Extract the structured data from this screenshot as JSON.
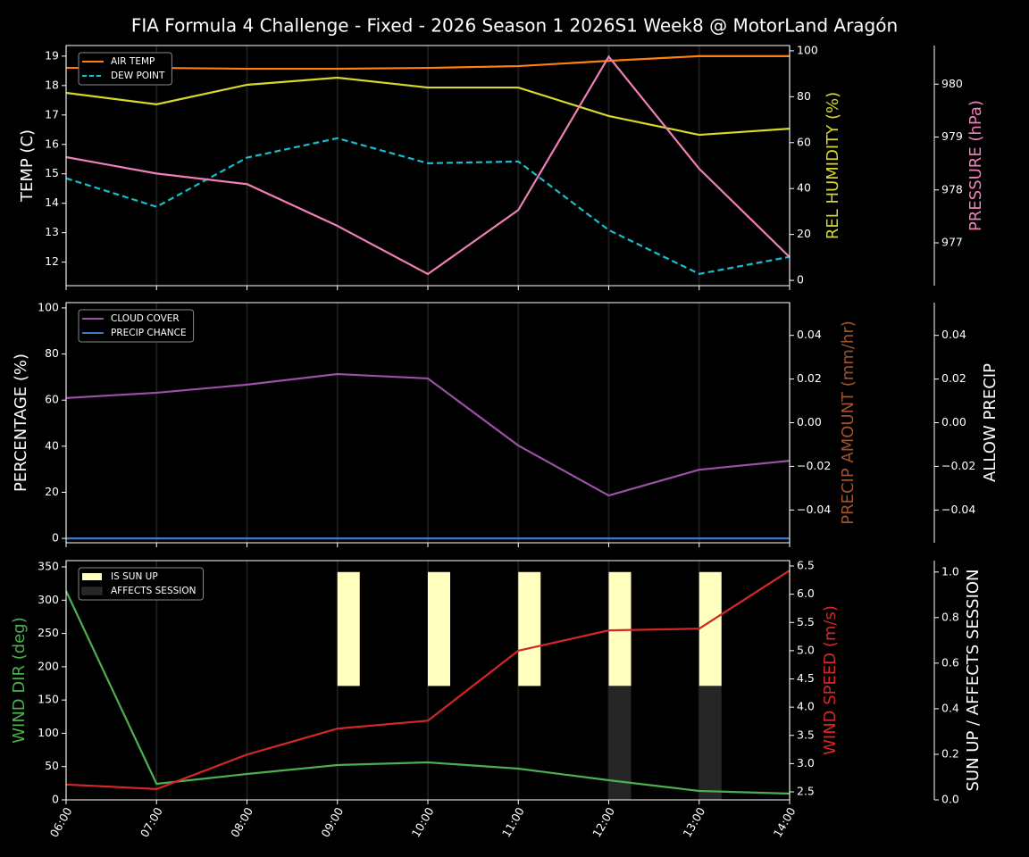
{
  "title": "FIA Formula 4 Challenge - Fixed - 2026 Season 1 2026S1 Week8 @ MotorLand Aragón",
  "categories": [
    "06:00",
    "07:00",
    "08:00",
    "09:00",
    "10:00",
    "11:00",
    "12:00",
    "13:00",
    "14:00"
  ],
  "chart_data": [
    {
      "type": "line",
      "grid": "x",
      "legend": "upper left",
      "axes": [
        {
          "label": "TEMP (C)",
          "color": "#ffffff",
          "ylim": [
            11.2,
            19.36
          ],
          "yticks": [
            12,
            13,
            14,
            15,
            16,
            17,
            18,
            19
          ]
        },
        {
          "label": "REL HUMIDITY (%)",
          "color": "#d8d82a",
          "ylim": [
            -2.3,
            102.3
          ],
          "yticks": [
            0,
            20,
            40,
            60,
            80,
            100
          ]
        },
        {
          "label": "PRESSURE (hPa)",
          "color": "#f07fb8",
          "ylim": [
            976.19,
            980.73
          ],
          "yticks": [
            977,
            978,
            979,
            980
          ]
        }
      ],
      "series": [
        {
          "name": "AIR TEMP",
          "color": "#ff7f0e",
          "style": "solid",
          "axis": 0,
          "legend": true,
          "values": [
            18.6,
            18.6,
            18.57,
            18.57,
            18.6,
            18.66,
            18.84,
            19.0,
            19.0
          ]
        },
        {
          "name": "DEW POINT",
          "color": "#17becf",
          "style": "dashed",
          "axis": 0,
          "legend": true,
          "values": [
            14.85,
            13.88,
            15.55,
            16.21,
            15.36,
            15.42,
            13.09,
            11.6,
            12.18
          ]
        },
        {
          "name": "REL HUMIDITY",
          "color": "#d8d82a",
          "style": "solid",
          "axis": 1,
          "legend": false,
          "values": [
            81.7,
            76.7,
            85.2,
            88.3,
            84.0,
            84.0,
            71.6,
            63.4,
            66.1
          ]
        },
        {
          "name": "PRESSURE",
          "color": "#f07fb8",
          "style": "solid",
          "axis": 2,
          "legend": false,
          "values": [
            978.62,
            978.31,
            978.11,
            977.32,
            976.41,
            977.62,
            980.52,
            978.4,
            976.73
          ]
        }
      ]
    },
    {
      "type": "line",
      "grid": "x",
      "legend": "upper left",
      "axes": [
        {
          "label": "PERCENTAGE (%)",
          "color": "#ffffff",
          "ylim": [
            -1.9,
            102.3
          ],
          "yticks": [
            0,
            20,
            40,
            60,
            80,
            100
          ]
        },
        {
          "label": "PRECIP AMOUNT (mm/hr)",
          "color": "#a0522d",
          "ylim": [
            -0.055,
            0.055
          ],
          "yticks": [
            {
              "value": -0.04,
              "label": "−0.04"
            },
            {
              "value": -0.02,
              "label": "−0.02"
            },
            {
              "value": 0,
              "label": "0.00"
            },
            0.02,
            0.04
          ]
        },
        {
          "label": "ALLOW PRECIP",
          "color": "#ffffff",
          "ylim": [
            -0.055,
            0.055
          ],
          "yticks": [
            {
              "value": -0.04,
              "label": "−0.04"
            },
            {
              "value": -0.02,
              "label": "−0.02"
            },
            {
              "value": 0,
              "label": "0.00"
            },
            0.02,
            0.04
          ]
        }
      ],
      "series": [
        {
          "name": "CLOUD COVER",
          "color": "#9b4fa6",
          "style": "solid",
          "axis": 0,
          "legend": true,
          "values": [
            60.9,
            63.2,
            66.7,
            71.3,
            69.4,
            40.3,
            18.6,
            29.8,
            33.7
          ]
        },
        {
          "name": "PRECIP CHANCE",
          "color": "#3b7dc4",
          "style": "solid",
          "axis": 0,
          "legend": true,
          "values": [
            0,
            0,
            0,
            0,
            0,
            0,
            0,
            0,
            0
          ]
        }
      ]
    },
    {
      "type": "line",
      "grid": "x",
      "legend": "upper left",
      "axes": [
        {
          "label": "WIND DIR (deg)",
          "color": "#4caf50",
          "ylim": [
            0,
            359.4
          ],
          "yticks": [
            0,
            50,
            100,
            150,
            200,
            250,
            300,
            350
          ]
        },
        {
          "label": "WIND SPEED (m/s)",
          "color": "#d62728",
          "ylim": [
            2.358,
            6.595
          ],
          "yticks": [
            2.5,
            {
              "value": 3,
              "label": "3.0"
            },
            3.5,
            {
              "value": 4,
              "label": "4.0"
            },
            4.5,
            {
              "value": 5,
              "label": "5.0"
            },
            5.5,
            {
              "value": 6,
              "label": "6.0"
            },
            6.5
          ]
        },
        {
          "label": "SUN UP / AFFECTS SESSION",
          "color": "#ffffff",
          "ylim": [
            0,
            1.05
          ],
          "yticks": [
            {
              "value": 0,
              "label": "0.0"
            },
            0.2,
            0.4,
            0.6,
            0.8,
            {
              "value": 1,
              "label": "1.0"
            }
          ]
        }
      ],
      "series": [
        {
          "name": "IS SUN UP",
          "color": "#ffffc0",
          "style": "bar",
          "axis": 2,
          "legend": true,
          "bottom": 0.5,
          "values": [
            0,
            0,
            0,
            0.5,
            0.5,
            0.5,
            0.5,
            0.5,
            0
          ]
        },
        {
          "name": "AFFECTS SESSION",
          "color": "#262626",
          "style": "bar",
          "axis": 2,
          "legend": true,
          "values": [
            0,
            0,
            0,
            0,
            0,
            0,
            0.5,
            0.5,
            0
          ]
        },
        {
          "name": "WIND DIR",
          "color": "#4caf50",
          "style": "solid",
          "axis": 0,
          "legend": false,
          "values": [
            313.8,
            24.1,
            38.9,
            52.3,
            56.3,
            46.9,
            29.5,
            13.4,
            9.4
          ]
        },
        {
          "name": "WIND SPEED",
          "color": "#d62728",
          "style": "solid",
          "axis": 1,
          "legend": false,
          "values": [
            2.63,
            2.55,
            3.16,
            3.62,
            3.76,
            5.0,
            5.36,
            5.39,
            6.42
          ]
        }
      ]
    }
  ]
}
